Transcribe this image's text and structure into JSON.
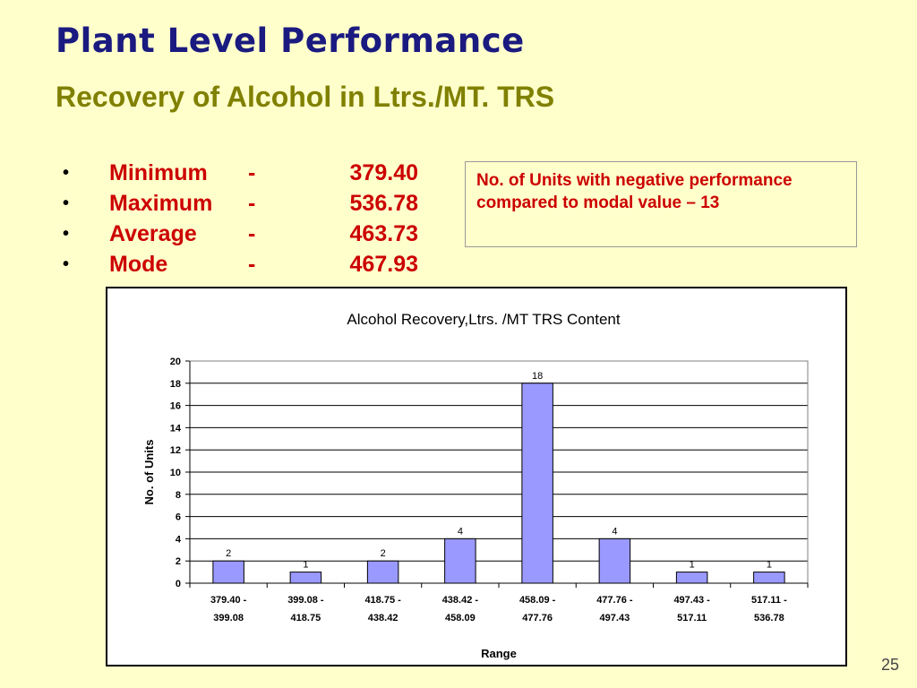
{
  "slide": {
    "title": "Plant Level Performance",
    "subtitle": "Recovery of Alcohol in Ltrs./MT. TRS",
    "page_number": "25"
  },
  "stats": [
    {
      "label": "Minimum",
      "dash": "-",
      "value": "379.40"
    },
    {
      "label": "Maximum",
      "dash": "-",
      "value": "536.78"
    },
    {
      "label": "Average",
      "dash": "-",
      "value": "463.73"
    },
    {
      "label": "Mode",
      "dash": "-",
      "value": "467.93"
    }
  ],
  "bullet_char": "•",
  "note": "No. of Units with negative performance compared to modal value – 13",
  "colors": {
    "background": "#FFFFCC",
    "title": "#1a1a80",
    "subtitle": "#808000",
    "accent_red": "#cc0000",
    "bar_fill": "#9999FF"
  },
  "chart_data": {
    "type": "bar",
    "title": "Alcohol Recovery,Ltrs. /MT TRS Content",
    "xlabel": "Range",
    "ylabel": "No. of Units",
    "categories": [
      [
        "379.40 -",
        "399.08"
      ],
      [
        "399.08 -",
        "418.75"
      ],
      [
        "418.75 -",
        "438.42"
      ],
      [
        "438.42 -",
        "458.09"
      ],
      [
        "458.09 -",
        "477.76"
      ],
      [
        "477.76 -",
        "497.43"
      ],
      [
        "497.43 -",
        "517.11"
      ],
      [
        "517.11 -",
        "536.78"
      ]
    ],
    "values": [
      2,
      1,
      2,
      4,
      18,
      4,
      1,
      1
    ],
    "ylim": [
      0,
      20
    ],
    "yticks": [
      0,
      2,
      4,
      6,
      8,
      10,
      12,
      14,
      16,
      18,
      20
    ],
    "grid": true,
    "data_labels": true
  }
}
